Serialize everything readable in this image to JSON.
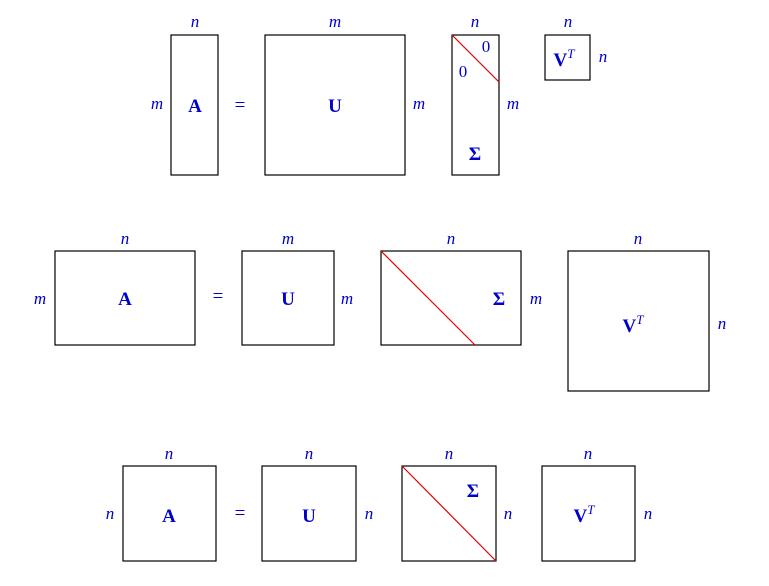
{
  "symbols": {
    "A": "A",
    "U": "U",
    "Sigma": "Σ",
    "V": "V",
    "transpose": "T",
    "equals": "=",
    "zero": "0"
  },
  "dims": {
    "m": "m",
    "n": "n"
  }
}
